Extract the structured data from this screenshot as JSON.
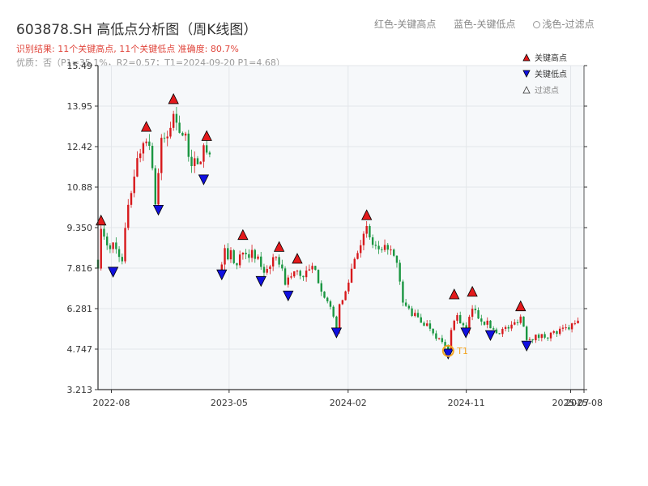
{
  "header": {
    "title": "603878.SH 高低点分析图（周K线图）",
    "legend_red": "红色-关键高点",
    "legend_blue": "蓝色-关键低点",
    "legend_light": "浅色-过滤点",
    "result": "识别结果: 11个关键高点, 11个关键低点   准确度: 80.7%",
    "quality": "优质：否（P1=35.1%，R2=0.57；T1=2024-09-20 P1=4.68）"
  },
  "colors": {
    "up": "#d7191c",
    "down": "#1a9641",
    "high_marker": "#e31a1c",
    "low_marker": "#1010e0",
    "t1_marker": "#f5a623",
    "grid": "#e3e6ea",
    "plot_bg": "#f6f8fa"
  },
  "chart_data": {
    "type": "candlestick",
    "ylim": [
      3.213,
      15.49
    ],
    "yticks": [
      "3.213",
      "4.747",
      "6.281",
      "7.816",
      "9.350",
      "10.88",
      "12.42",
      "13.95",
      "15.49"
    ],
    "xlim": [
      "2022-07-01",
      "2025-08-01"
    ],
    "xticks": [
      {
        "date": "2022-08-01",
        "label": "2022-08"
      },
      {
        "date": "2023-05-01",
        "label": "2023-05"
      },
      {
        "date": "2024-02-01",
        "label": "2024-02"
      },
      {
        "date": "2024-11-01",
        "label": "2024-11"
      },
      {
        "date": "2025-07-01",
        "label": "2025-07"
      },
      {
        "date": "2025-08-01",
        "label": "2025-08"
      }
    ],
    "path": [
      [
        "2022-07-01",
        8.0
      ],
      [
        "2022-07-08",
        9.2
      ],
      [
        "2022-07-22",
        8.6
      ],
      [
        "2022-08-05",
        8.7
      ],
      [
        "2022-08-19",
        8.4
      ],
      [
        "2022-08-26",
        8.0
      ],
      [
        "2022-09-09",
        10.3
      ],
      [
        "2022-09-23",
        11.4
      ],
      [
        "2022-10-07",
        12.3
      ],
      [
        "2022-10-21",
        12.9
      ],
      [
        "2022-11-04",
        11.8
      ],
      [
        "2022-11-11",
        10.3
      ],
      [
        "2022-11-25",
        12.5
      ],
      [
        "2022-12-09",
        12.8
      ],
      [
        "2022-12-23",
        13.6
      ],
      [
        "2023-01-06",
        13.2
      ],
      [
        "2023-01-20",
        12.6
      ],
      [
        "2023-02-03",
        11.9
      ],
      [
        "2023-02-17",
        11.6
      ],
      [
        "2023-03-03",
        12.4
      ],
      [
        "2023-03-10",
        12.2
      ],
      [
        "2023-03-24",
        11.6
      ],
      [
        "2023-04-14",
        7.8
      ],
      [
        "2023-04-21",
        8.4
      ],
      [
        "2023-05-05",
        8.3
      ],
      [
        "2023-05-19",
        7.9
      ],
      [
        "2023-06-02",
        8.6
      ],
      [
        "2023-06-16",
        8.4
      ],
      [
        "2023-07-07",
        8.1
      ],
      [
        "2023-07-21",
        7.7
      ],
      [
        "2023-08-04",
        8.0
      ],
      [
        "2023-08-25",
        8.1
      ],
      [
        "2023-09-08",
        7.3
      ],
      [
        "2023-09-22",
        7.5
      ],
      [
        "2023-10-06",
        7.7
      ],
      [
        "2023-10-20",
        7.5
      ],
      [
        "2023-11-10",
        7.8
      ],
      [
        "2023-11-24",
        7.4
      ],
      [
        "2023-12-15",
        6.5
      ],
      [
        "2024-01-05",
        5.6
      ],
      [
        "2024-01-12",
        6.3
      ],
      [
        "2024-01-26",
        6.9
      ],
      [
        "2024-02-09",
        7.8
      ],
      [
        "2024-02-23",
        8.6
      ],
      [
        "2024-03-15",
        9.2
      ],
      [
        "2024-03-29",
        8.7
      ],
      [
        "2024-04-19",
        8.3
      ],
      [
        "2024-05-03",
        8.7
      ],
      [
        "2024-05-24",
        7.9
      ],
      [
        "2024-06-07",
        6.5
      ],
      [
        "2024-06-28",
        6.1
      ],
      [
        "2024-07-19",
        5.8
      ],
      [
        "2024-08-09",
        5.6
      ],
      [
        "2024-08-30",
        5.1
      ],
      [
        "2024-09-20",
        4.7
      ],
      [
        "2024-09-27",
        5.6
      ],
      [
        "2024-10-11",
        6.0
      ],
      [
        "2024-10-25",
        5.6
      ],
      [
        "2024-11-01",
        5.4
      ],
      [
        "2024-11-15",
        6.3
      ],
      [
        "2024-11-29",
        6.0
      ],
      [
        "2024-12-20",
        5.7
      ],
      [
        "2025-01-10",
        5.4
      ],
      [
        "2025-02-14",
        5.6
      ],
      [
        "2025-03-07",
        6.0
      ],
      [
        "2025-03-21",
        5.2
      ],
      [
        "2025-04-11",
        5.2
      ],
      [
        "2025-05-16",
        5.3
      ],
      [
        "2025-06-20",
        5.5
      ],
      [
        "2025-07-25",
        5.8
      ]
    ],
    "highs": [
      {
        "date": "2022-07-08",
        "value": 9.45
      },
      {
        "date": "2022-10-21",
        "value": 13.0
      },
      {
        "date": "2022-12-23",
        "value": 14.05
      },
      {
        "date": "2023-03-10",
        "value": 12.65
      },
      {
        "date": "2023-06-02",
        "value": 8.9
      },
      {
        "date": "2023-08-25",
        "value": 8.45
      },
      {
        "date": "2023-10-06",
        "value": 8.0
      },
      {
        "date": "2024-03-15",
        "value": 9.65
      },
      {
        "date": "2024-10-04",
        "value": 6.65
      },
      {
        "date": "2024-11-15",
        "value": 6.75
      },
      {
        "date": "2025-03-07",
        "value": 6.2
      }
    ],
    "lows": [
      {
        "date": "2022-08-05",
        "value": 7.85
      },
      {
        "date": "2022-11-18",
        "value": 10.2
      },
      {
        "date": "2023-03-03",
        "value": 11.35
      },
      {
        "date": "2023-04-14",
        "value": 7.75
      },
      {
        "date": "2023-07-14",
        "value": 7.5
      },
      {
        "date": "2023-09-15",
        "value": 6.95
      },
      {
        "date": "2024-01-05",
        "value": 5.55
      },
      {
        "date": "2024-09-20",
        "value": 4.75
      },
      {
        "date": "2024-10-31",
        "value": 5.55
      },
      {
        "date": "2024-12-27",
        "value": 5.45
      },
      {
        "date": "2025-03-21",
        "value": 5.05
      }
    ],
    "t1": {
      "date": "2024-09-20",
      "value": 4.68,
      "label": "T1"
    },
    "legend": {
      "high": "关键高点",
      "low": "关键低点",
      "filtered": "过滤点",
      "position": "top-right"
    }
  }
}
